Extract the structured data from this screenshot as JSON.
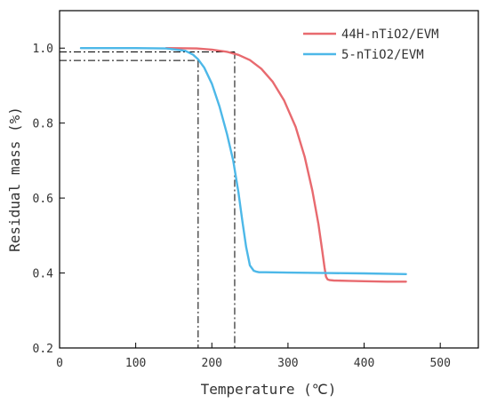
{
  "chart_data": {
    "type": "line",
    "title": "",
    "xlabel": "Temperature (℃)",
    "ylabel": "Residual mass (%)",
    "xlim": [
      0,
      550
    ],
    "ylim": [
      0.2,
      1.1
    ],
    "xticks": [
      0,
      100,
      200,
      300,
      400,
      500
    ],
    "yticks": [
      0.2,
      0.4,
      0.6,
      0.8,
      1.0
    ],
    "xtick_labels": [
      "0",
      "100",
      "200",
      "300",
      "400",
      "500"
    ],
    "ytick_labels": [
      "0.2",
      "0.4",
      "0.6",
      "0.8",
      "1.0"
    ],
    "grid": false,
    "legend_position": "top-right",
    "series": [
      {
        "name": "44H-nTiO2/EVM",
        "color": "#e86a6f",
        "x": [
          140,
          180,
          200,
          220,
          235,
          250,
          265,
          280,
          295,
          310,
          322,
          332,
          340,
          345,
          348,
          350,
          352,
          355,
          360,
          380,
          400,
          430,
          455
        ],
        "y": [
          1.0,
          0.999,
          0.996,
          0.99,
          0.982,
          0.968,
          0.945,
          0.91,
          0.86,
          0.79,
          0.71,
          0.62,
          0.53,
          0.46,
          0.415,
          0.39,
          0.383,
          0.381,
          0.38,
          0.379,
          0.378,
          0.377,
          0.377
        ]
      },
      {
        "name": "5-nTiO2/EVM",
        "color": "#4db8e8",
        "x": [
          28,
          60,
          100,
          140,
          165,
          175,
          182,
          190,
          200,
          210,
          220,
          228,
          235,
          240,
          245,
          250,
          255,
          258,
          262,
          270,
          300,
          350,
          400,
          455
        ],
        "y": [
          1.0,
          1.0,
          1.0,
          0.999,
          0.993,
          0.983,
          0.97,
          0.948,
          0.905,
          0.845,
          0.77,
          0.7,
          0.615,
          0.54,
          0.47,
          0.42,
          0.406,
          0.404,
          0.402,
          0.402,
          0.401,
          0.4,
          0.399,
          0.397
        ]
      }
    ],
    "reference_lines": [
      {
        "x": 182,
        "y": 0.967
      },
      {
        "x": 230,
        "y": 0.99
      }
    ]
  }
}
